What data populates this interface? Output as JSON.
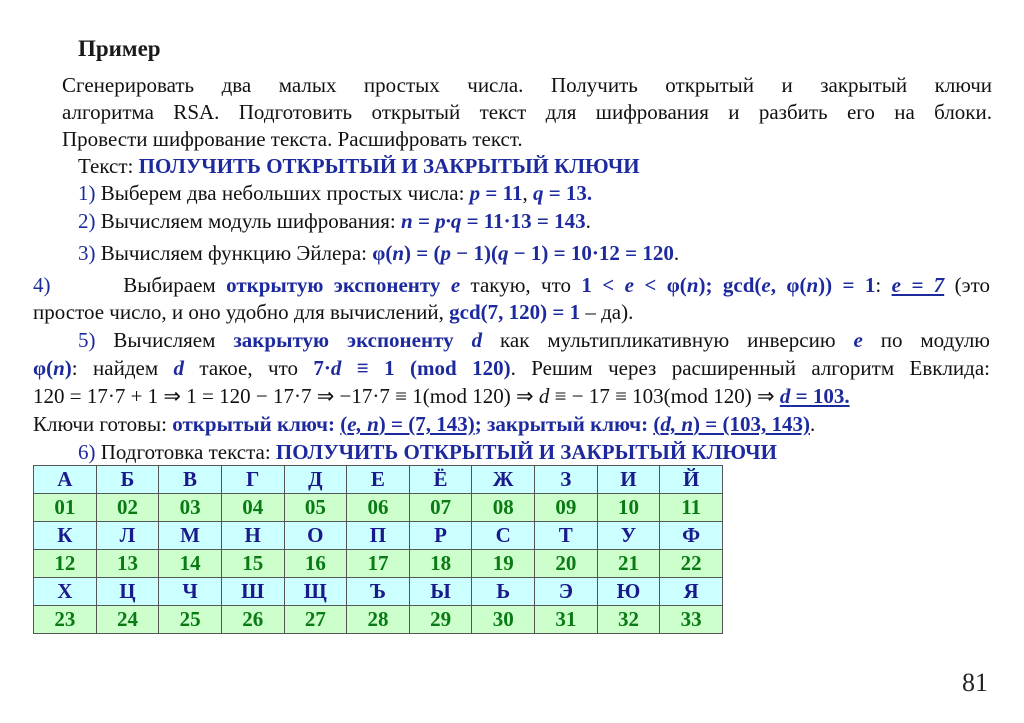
{
  "title": "Пример",
  "lines": [
    {
      "pos": "p1",
      "segs": [
        {
          "t": "Сгенерировать два малых простых числа. Получить открытый и закрытый ключи",
          "s": "n"
        }
      ]
    },
    {
      "pos": "p2",
      "segs": [
        {
          "t": "алгоритма RSA. Подготовить открытый текст для шифрования и разбить его на блоки.",
          "s": "n"
        }
      ]
    },
    {
      "pos": "p3",
      "segs": [
        {
          "t": "Провести шифрование текста. Расшифровать текст.",
          "s": "n"
        }
      ]
    },
    {
      "pos": "p4",
      "segs": [
        {
          "t": "Текст: ",
          "s": "n"
        },
        {
          "t": "ПОЛУЧИТЬ ОТКРЫТЫЙ И ЗАКРЫТЫЙ КЛЮЧИ",
          "s": "B"
        }
      ]
    },
    {
      "pos": "p5",
      "segs": [
        {
          "t": "1)",
          "s": "bl"
        },
        {
          "t": " Выберем два небольших простых числа: ",
          "s": "n"
        },
        {
          "t": "p",
          "s": "BI"
        },
        {
          "t": " = 11",
          "s": "B"
        },
        {
          "t": ", ",
          "s": "n"
        },
        {
          "t": "q",
          "s": "BI"
        },
        {
          "t": " = 13.",
          "s": "B"
        }
      ]
    },
    {
      "pos": "p6",
      "segs": [
        {
          "t": "2)",
          "s": "bl"
        },
        {
          "t": " Вычисляем модуль шифрования: ",
          "s": "n"
        },
        {
          "t": "n = p·q",
          "s": "BI"
        },
        {
          "t": " = 11·13 = 143",
          "s": "B"
        },
        {
          "t": ".",
          "s": "n"
        }
      ]
    },
    {
      "pos": "p7",
      "segs": [
        {
          "t": "3)",
          "s": "bl"
        },
        {
          "t": " Вычисляем функцию Эйлера: ",
          "s": "n"
        },
        {
          "t": "φ(",
          "s": "B"
        },
        {
          "t": "n",
          "s": "BI"
        },
        {
          "t": ") = (",
          "s": "B"
        },
        {
          "t": "p",
          "s": "BI"
        },
        {
          "t": " − 1)(",
          "s": "B"
        },
        {
          "t": "q",
          "s": "BI"
        },
        {
          "t": " − 1) = 10·12 = 120",
          "s": "B"
        },
        {
          "t": ".",
          "s": "n"
        }
      ]
    },
    {
      "pos": "p8",
      "segs": [
        {
          "t": "4)",
          "s": "bl"
        },
        {
          "t": "       Выбираем ",
          "s": "n"
        },
        {
          "t": "открытую экспоненту ",
          "s": "B"
        },
        {
          "t": "e",
          "s": "BI"
        },
        {
          "t": " такую, что ",
          "s": "n"
        },
        {
          "t": "1 < ",
          "s": "B"
        },
        {
          "t": "e",
          "s": "BI"
        },
        {
          "t": " < φ(",
          "s": "B"
        },
        {
          "t": "n",
          "s": "BI"
        },
        {
          "t": "); gcd(",
          "s": "B"
        },
        {
          "t": "e",
          "s": "BI"
        },
        {
          "t": ", φ(",
          "s": "B"
        },
        {
          "t": "n",
          "s": "BI"
        },
        {
          "t": ")) = 1",
          "s": "B"
        },
        {
          "t": ": ",
          "s": "n"
        },
        {
          "t": "e = 7",
          "s": "UI"
        },
        {
          "t": " (это",
          "s": "n"
        }
      ]
    },
    {
      "pos": "p9",
      "segs": [
        {
          "t": "простое число, и оно удобно для вычислений, ",
          "s": "n"
        },
        {
          "t": "gcd(7, 120) = 1",
          "s": "B"
        },
        {
          "t": " – да).",
          "s": "n"
        }
      ]
    },
    {
      "pos": "p10",
      "segs": [
        {
          "t": "5)",
          "s": "bl"
        },
        {
          "t": " Вычисляем ",
          "s": "n"
        },
        {
          "t": "закрытую экспоненту ",
          "s": "B"
        },
        {
          "t": "d",
          "s": "BI"
        },
        {
          "t": " как мультипликативную инверсию ",
          "s": "n"
        },
        {
          "t": "e",
          "s": "BI"
        },
        {
          "t": " по модулю",
          "s": "n"
        }
      ]
    },
    {
      "pos": "p11",
      "segs": [
        {
          "t": "φ(",
          "s": "B"
        },
        {
          "t": "n",
          "s": "BI"
        },
        {
          "t": ")",
          "s": "B"
        },
        {
          "t": ": найдем ",
          "s": "n"
        },
        {
          "t": "d",
          "s": "BI"
        },
        {
          "t": " такое, что ",
          "s": "n"
        },
        {
          "t": "7·",
          "s": "B"
        },
        {
          "t": "d",
          "s": "BI"
        },
        {
          "t": " ≡ 1 (mod 120)",
          "s": "B"
        },
        {
          "t": ". Решим через расширенный алгоритм Евклида:",
          "s": "n"
        }
      ]
    },
    {
      "pos": "p12",
      "segs": [
        {
          "t": "120 = 17·7 + 1 ⇒ 1 = 120 − 17·7 ⇒ −17·7 ≡ 1(mod 120) ⇒ ",
          "s": "n"
        },
        {
          "t": "d",
          "s": "I"
        },
        {
          "t": " ≡ − 17 ≡ 103(mod 120) ⇒ ",
          "s": "n"
        },
        {
          "t": "d",
          "s": "UI"
        },
        {
          "t": " = 103.",
          "s": "U"
        }
      ]
    },
    {
      "pos": "p13",
      "segs": [
        {
          "t": "Ключи готовы: ",
          "s": "n"
        },
        {
          "t": "открытый ключ: ",
          "s": "B"
        },
        {
          "t": "(",
          "s": "U"
        },
        {
          "t": "e, n",
          "s": "UI"
        },
        {
          "t": ") = (7, 143)",
          "s": "U"
        },
        {
          "t": "; закрытый ключ: ",
          "s": "B"
        },
        {
          "t": "(",
          "s": "U"
        },
        {
          "t": "d, n",
          "s": "UI"
        },
        {
          "t": ") = (103, 143)",
          "s": "U"
        },
        {
          "t": ".",
          "s": "n"
        }
      ]
    },
    {
      "pos": "p14",
      "segs": [
        {
          "t": "6)",
          "s": "bl"
        },
        {
          "t": " Подготовка текста: ",
          "s": "n"
        },
        {
          "t": "ПОЛУЧИТЬ ОТКРЫТЫЙ И ЗАКРЫТЫЙ КЛЮЧИ",
          "s": "B"
        }
      ]
    }
  ],
  "alphabet_table": {
    "rows": [
      {
        "kind": "let",
        "cells": [
          "А",
          "Б",
          "В",
          "Г",
          "Д",
          "Е",
          "Ё",
          "Ж",
          "З",
          "И",
          "Й"
        ]
      },
      {
        "kind": "num",
        "cells": [
          "01",
          "02",
          "03",
          "04",
          "05",
          "06",
          "07",
          "08",
          "09",
          "10",
          "11"
        ]
      },
      {
        "kind": "let",
        "cells": [
          "К",
          "Л",
          "М",
          "Н",
          "О",
          "П",
          "Р",
          "С",
          "Т",
          "У",
          "Ф"
        ]
      },
      {
        "kind": "num",
        "cells": [
          "12",
          "13",
          "14",
          "15",
          "16",
          "17",
          "18",
          "19",
          "20",
          "21",
          "22"
        ]
      },
      {
        "kind": "let",
        "cells": [
          "Х",
          "Ц",
          "Ч",
          "Ш",
          "Щ",
          "Ъ",
          "Ы",
          "Ь",
          "Э",
          "Ю",
          "Я"
        ]
      },
      {
        "kind": "num",
        "cells": [
          "23",
          "24",
          "25",
          "26",
          "27",
          "28",
          "29",
          "30",
          "31",
          "32",
          "33"
        ]
      }
    ],
    "colors": {
      "letter_bg": "#ccffff",
      "number_bg": "#ccffcc",
      "letter_text": "#1a1a8c",
      "number_text": "#0a7a14"
    }
  },
  "page_number": "81"
}
